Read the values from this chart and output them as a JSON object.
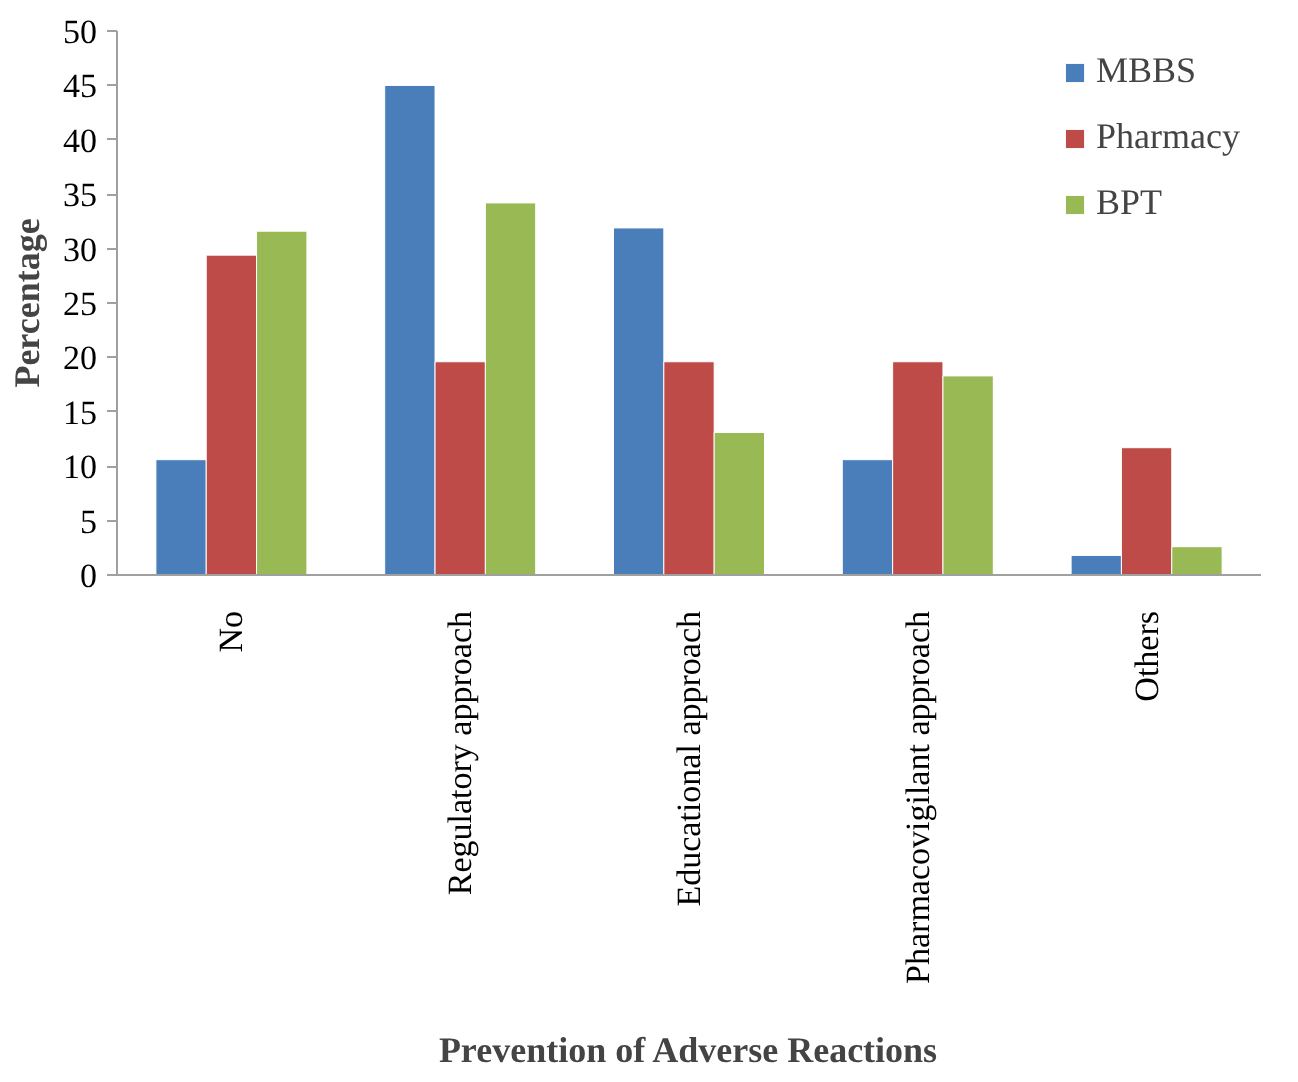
{
  "chart_data": {
    "type": "bar",
    "xlabel": "Prevention of Adverse Reactions",
    "ylabel": "Percentage",
    "categories": [
      "No",
      "Regulatory approach",
      "Educational approach",
      "Pharmacovigilant approach",
      "Others"
    ],
    "series": [
      {
        "name": "MBBS",
        "color": "#4a7ebb",
        "values": [
          10.6,
          45,
          31.9,
          10.6,
          1.8
        ]
      },
      {
        "name": "Pharmacy",
        "color": "#be4b48",
        "values": [
          29.4,
          19.6,
          19.6,
          19.6,
          11.7
        ]
      },
      {
        "name": "BPT",
        "color": "#98b954",
        "values": [
          31.6,
          34.2,
          13.1,
          18.3,
          2.6
        ]
      }
    ],
    "ylim": [
      0,
      50
    ],
    "yticks": [
      0,
      5,
      10,
      15,
      20,
      25,
      30,
      35,
      40,
      45,
      50
    ],
    "grid": false,
    "legend": "top right"
  }
}
